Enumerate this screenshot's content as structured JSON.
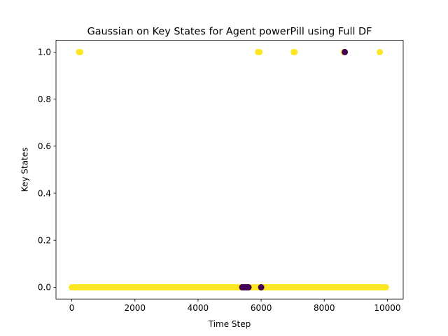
{
  "chart_data": {
    "type": "scatter",
    "title": "Gaussian on Key States for Agent powerPill using Full DF",
    "xlabel": "Time Step",
    "ylabel": "Key States",
    "xlim": [
      -500,
      10500
    ],
    "ylim": [
      -0.05,
      1.05
    ],
    "xticks": [
      0,
      2000,
      4000,
      6000,
      8000,
      10000
    ],
    "yticks": [
      0.0,
      0.2,
      0.4,
      0.6,
      0.8,
      1.0
    ],
    "xtick_labels": [
      "0",
      "2000",
      "4000",
      "6000",
      "8000",
      "10000"
    ],
    "ytick_labels": [
      "0.0",
      "0.2",
      "0.4",
      "0.6",
      "0.8",
      "1.0"
    ],
    "grid": false,
    "colors": {
      "cluster_a": "#fde725",
      "cluster_b": "#440154"
    },
    "series": [
      {
        "color": "#fde725",
        "points": [
          [
            230,
            1
          ],
          [
            270,
            1
          ],
          [
            5900,
            1
          ],
          [
            5950,
            1
          ],
          [
            7030,
            1
          ],
          [
            7060,
            1
          ],
          [
            8620,
            1
          ],
          [
            9760,
            1
          ],
          [
            0,
            0
          ],
          [
            50,
            0
          ],
          [
            100,
            0
          ],
          [
            150,
            0
          ],
          [
            200,
            0
          ],
          [
            250,
            0
          ],
          [
            300,
            0
          ],
          [
            350,
            0
          ],
          [
            400,
            0
          ],
          [
            450,
            0
          ],
          [
            500,
            0
          ],
          [
            550,
            0
          ],
          [
            600,
            0
          ],
          [
            650,
            0
          ],
          [
            700,
            0
          ],
          [
            750,
            0
          ],
          [
            800,
            0
          ],
          [
            850,
            0
          ],
          [
            900,
            0
          ],
          [
            950,
            0
          ],
          [
            1000,
            0
          ],
          [
            1050,
            0
          ],
          [
            1100,
            0
          ],
          [
            1150,
            0
          ],
          [
            1200,
            0
          ],
          [
            1250,
            0
          ],
          [
            1300,
            0
          ],
          [
            1350,
            0
          ],
          [
            1400,
            0
          ],
          [
            1450,
            0
          ],
          [
            1500,
            0
          ],
          [
            1550,
            0
          ],
          [
            1600,
            0
          ],
          [
            1650,
            0
          ],
          [
            1700,
            0
          ],
          [
            1750,
            0
          ],
          [
            1800,
            0
          ],
          [
            1850,
            0
          ],
          [
            1900,
            0
          ],
          [
            1950,
            0
          ],
          [
            2000,
            0
          ],
          [
            2050,
            0
          ],
          [
            2100,
            0
          ],
          [
            2150,
            0
          ],
          [
            2200,
            0
          ],
          [
            2250,
            0
          ],
          [
            2300,
            0
          ],
          [
            2350,
            0
          ],
          [
            2400,
            0
          ],
          [
            2450,
            0
          ],
          [
            2500,
            0
          ],
          [
            2550,
            0
          ],
          [
            2600,
            0
          ],
          [
            2650,
            0
          ],
          [
            2700,
            0
          ],
          [
            2750,
            0
          ],
          [
            2800,
            0
          ],
          [
            2850,
            0
          ],
          [
            2900,
            0
          ],
          [
            2950,
            0
          ],
          [
            3000,
            0
          ],
          [
            3050,
            0
          ],
          [
            3100,
            0
          ],
          [
            3150,
            0
          ],
          [
            3200,
            0
          ],
          [
            3250,
            0
          ],
          [
            3300,
            0
          ],
          [
            3350,
            0
          ],
          [
            3400,
            0
          ],
          [
            3450,
            0
          ],
          [
            3500,
            0
          ],
          [
            3550,
            0
          ],
          [
            3600,
            0
          ],
          [
            3650,
            0
          ],
          [
            3700,
            0
          ],
          [
            3750,
            0
          ],
          [
            3800,
            0
          ],
          [
            3850,
            0
          ],
          [
            3900,
            0
          ],
          [
            3950,
            0
          ],
          [
            4000,
            0
          ],
          [
            4050,
            0
          ],
          [
            4100,
            0
          ],
          [
            4150,
            0
          ],
          [
            4200,
            0
          ],
          [
            4250,
            0
          ],
          [
            4300,
            0
          ],
          [
            4350,
            0
          ],
          [
            4400,
            0
          ],
          [
            4450,
            0
          ],
          [
            4500,
            0
          ],
          [
            4550,
            0
          ],
          [
            4600,
            0
          ],
          [
            4650,
            0
          ],
          [
            4700,
            0
          ],
          [
            4750,
            0
          ],
          [
            4800,
            0
          ],
          [
            4850,
            0
          ],
          [
            4900,
            0
          ],
          [
            4950,
            0
          ],
          [
            5000,
            0
          ],
          [
            5050,
            0
          ],
          [
            5100,
            0
          ],
          [
            5150,
            0
          ],
          [
            5200,
            0
          ],
          [
            5250,
            0
          ],
          [
            5300,
            0
          ],
          [
            5350,
            0
          ],
          [
            5700,
            0
          ],
          [
            5750,
            0
          ],
          [
            5800,
            0
          ],
          [
            5850,
            0
          ],
          [
            5900,
            0
          ],
          [
            5950,
            0
          ],
          [
            6100,
            0
          ],
          [
            6150,
            0
          ],
          [
            6200,
            0
          ],
          [
            6250,
            0
          ],
          [
            6300,
            0
          ],
          [
            6350,
            0
          ],
          [
            6400,
            0
          ],
          [
            6450,
            0
          ],
          [
            6500,
            0
          ],
          [
            6550,
            0
          ],
          [
            6600,
            0
          ],
          [
            6650,
            0
          ],
          [
            6700,
            0
          ],
          [
            6750,
            0
          ],
          [
            6800,
            0
          ],
          [
            6850,
            0
          ],
          [
            6900,
            0
          ],
          [
            6950,
            0
          ],
          [
            7000,
            0
          ],
          [
            7050,
            0
          ],
          [
            7100,
            0
          ],
          [
            7150,
            0
          ],
          [
            7200,
            0
          ],
          [
            7250,
            0
          ],
          [
            7300,
            0
          ],
          [
            7350,
            0
          ],
          [
            7400,
            0
          ],
          [
            7450,
            0
          ],
          [
            7500,
            0
          ],
          [
            7550,
            0
          ],
          [
            7600,
            0
          ],
          [
            7650,
            0
          ],
          [
            7700,
            0
          ],
          [
            7750,
            0
          ],
          [
            7800,
            0
          ],
          [
            7850,
            0
          ],
          [
            7900,
            0
          ],
          [
            7950,
            0
          ],
          [
            8000,
            0
          ],
          [
            8050,
            0
          ],
          [
            8100,
            0
          ],
          [
            8150,
            0
          ],
          [
            8200,
            0
          ],
          [
            8250,
            0
          ],
          [
            8300,
            0
          ],
          [
            8350,
            0
          ],
          [
            8400,
            0
          ],
          [
            8450,
            0
          ],
          [
            8500,
            0
          ],
          [
            8550,
            0
          ],
          [
            8600,
            0
          ],
          [
            8650,
            0
          ],
          [
            8700,
            0
          ],
          [
            8750,
            0
          ],
          [
            8800,
            0
          ],
          [
            8850,
            0
          ],
          [
            8900,
            0
          ],
          [
            8950,
            0
          ],
          [
            9000,
            0
          ],
          [
            9050,
            0
          ],
          [
            9100,
            0
          ],
          [
            9150,
            0
          ],
          [
            9200,
            0
          ],
          [
            9250,
            0
          ],
          [
            9300,
            0
          ],
          [
            9350,
            0
          ],
          [
            9400,
            0
          ],
          [
            9450,
            0
          ],
          [
            9500,
            0
          ],
          [
            9550,
            0
          ],
          [
            9600,
            0
          ],
          [
            9650,
            0
          ],
          [
            9700,
            0
          ],
          [
            9750,
            0
          ],
          [
            9800,
            0
          ],
          [
            9850,
            0
          ],
          [
            9900,
            0
          ],
          [
            9950,
            0
          ]
        ]
      },
      {
        "color": "#440154",
        "points": [
          [
            5400,
            0
          ],
          [
            5450,
            0
          ],
          [
            5500,
            0
          ],
          [
            5550,
            0
          ],
          [
            5600,
            0
          ],
          [
            6000,
            0
          ],
          [
            8650,
            1
          ]
        ]
      }
    ]
  }
}
